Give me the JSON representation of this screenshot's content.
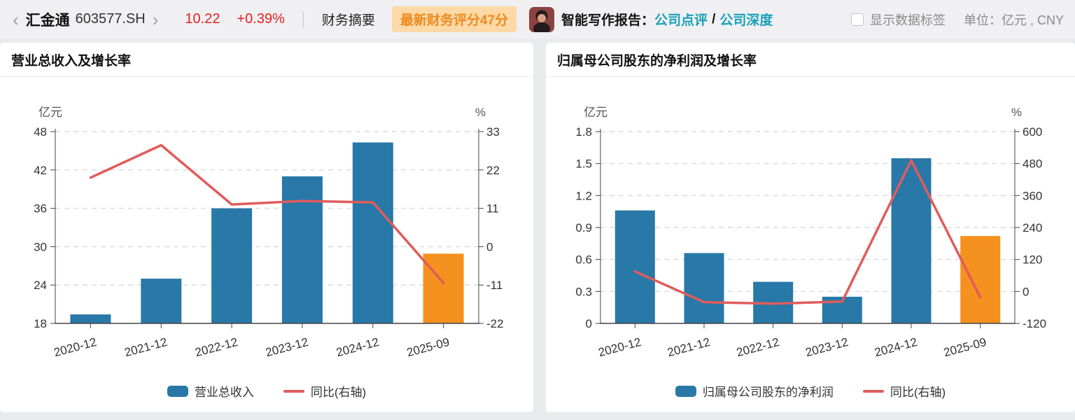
{
  "header": {
    "stock_name": "汇金通",
    "stock_code": "603577.SH",
    "price": "10.22",
    "change_pct": "+0.39%",
    "tab_financial_summary": "财务摘要",
    "score_badge": "最新财务评分47分",
    "ai_report_label": "智能写作报告：",
    "link_company_comment": "公司点评",
    "link_separator": "/",
    "link_company_depth": "公司深度",
    "checkbox_label": "显示数据标签",
    "unit_label": "单位：亿元 , CNY"
  },
  "colors": {
    "bar": "#2878a8",
    "bar_highlight": "#f5911e",
    "line": "#e05c5c",
    "grid": "#dcdcdc",
    "axis": "#444444",
    "price_red": "#e62222",
    "link_teal": "#18a0b8",
    "badge_bg": "#fcd9a6",
    "badge_text": "#ee8a1f"
  },
  "chart_data": [
    {
      "type": "bar",
      "subtype": "bar+line dual-axis",
      "title": "营业总收入及增长率",
      "unit_left": "亿元",
      "unit_right": "%",
      "categories": [
        "2020-12",
        "2021-12",
        "2022-12",
        "2023-12",
        "2024-12",
        "2025-09"
      ],
      "bars": {
        "name": "营业总收入",
        "values": [
          19.4,
          25.0,
          36.0,
          41.0,
          46.3,
          28.9
        ],
        "highlight_last": true
      },
      "line": {
        "name": "同比(右轴)",
        "values": [
          19.8,
          29.1,
          12.1,
          13.1,
          12.7,
          -10.4
        ]
      },
      "left_axis": {
        "min": 18,
        "max": 48,
        "ticks": [
          18,
          24,
          30,
          36,
          42,
          48
        ]
      },
      "right_axis": {
        "min": -22,
        "max": 33,
        "ticks": [
          -22,
          -11,
          0,
          11,
          22,
          33
        ]
      },
      "grid": "dashed horizontal",
      "legend_position": "bottom"
    },
    {
      "type": "bar",
      "subtype": "bar+line dual-axis",
      "title": "归属母公司股东的净利润及增长率",
      "unit_left": "亿元",
      "unit_right": "%",
      "categories": [
        "2020-12",
        "2021-12",
        "2022-12",
        "2023-12",
        "2024-12",
        "2025-09"
      ],
      "bars": {
        "name": "归属母公司股东的净利润",
        "values": [
          1.06,
          0.66,
          0.39,
          0.25,
          1.55,
          0.82
        ],
        "highlight_last": true
      },
      "line": {
        "name": "同比(右轴)",
        "values": [
          75,
          -40,
          -46,
          -38,
          492,
          -22
        ]
      },
      "left_axis": {
        "min": 0,
        "max": 1.8,
        "ticks": [
          0,
          0.3,
          0.6,
          0.9,
          1.2,
          1.5,
          1.8
        ]
      },
      "right_axis": {
        "min": -120,
        "max": 600,
        "ticks": [
          -120,
          0,
          120,
          240,
          360,
          480,
          600
        ]
      },
      "grid": "dashed horizontal",
      "legend_position": "bottom"
    }
  ]
}
